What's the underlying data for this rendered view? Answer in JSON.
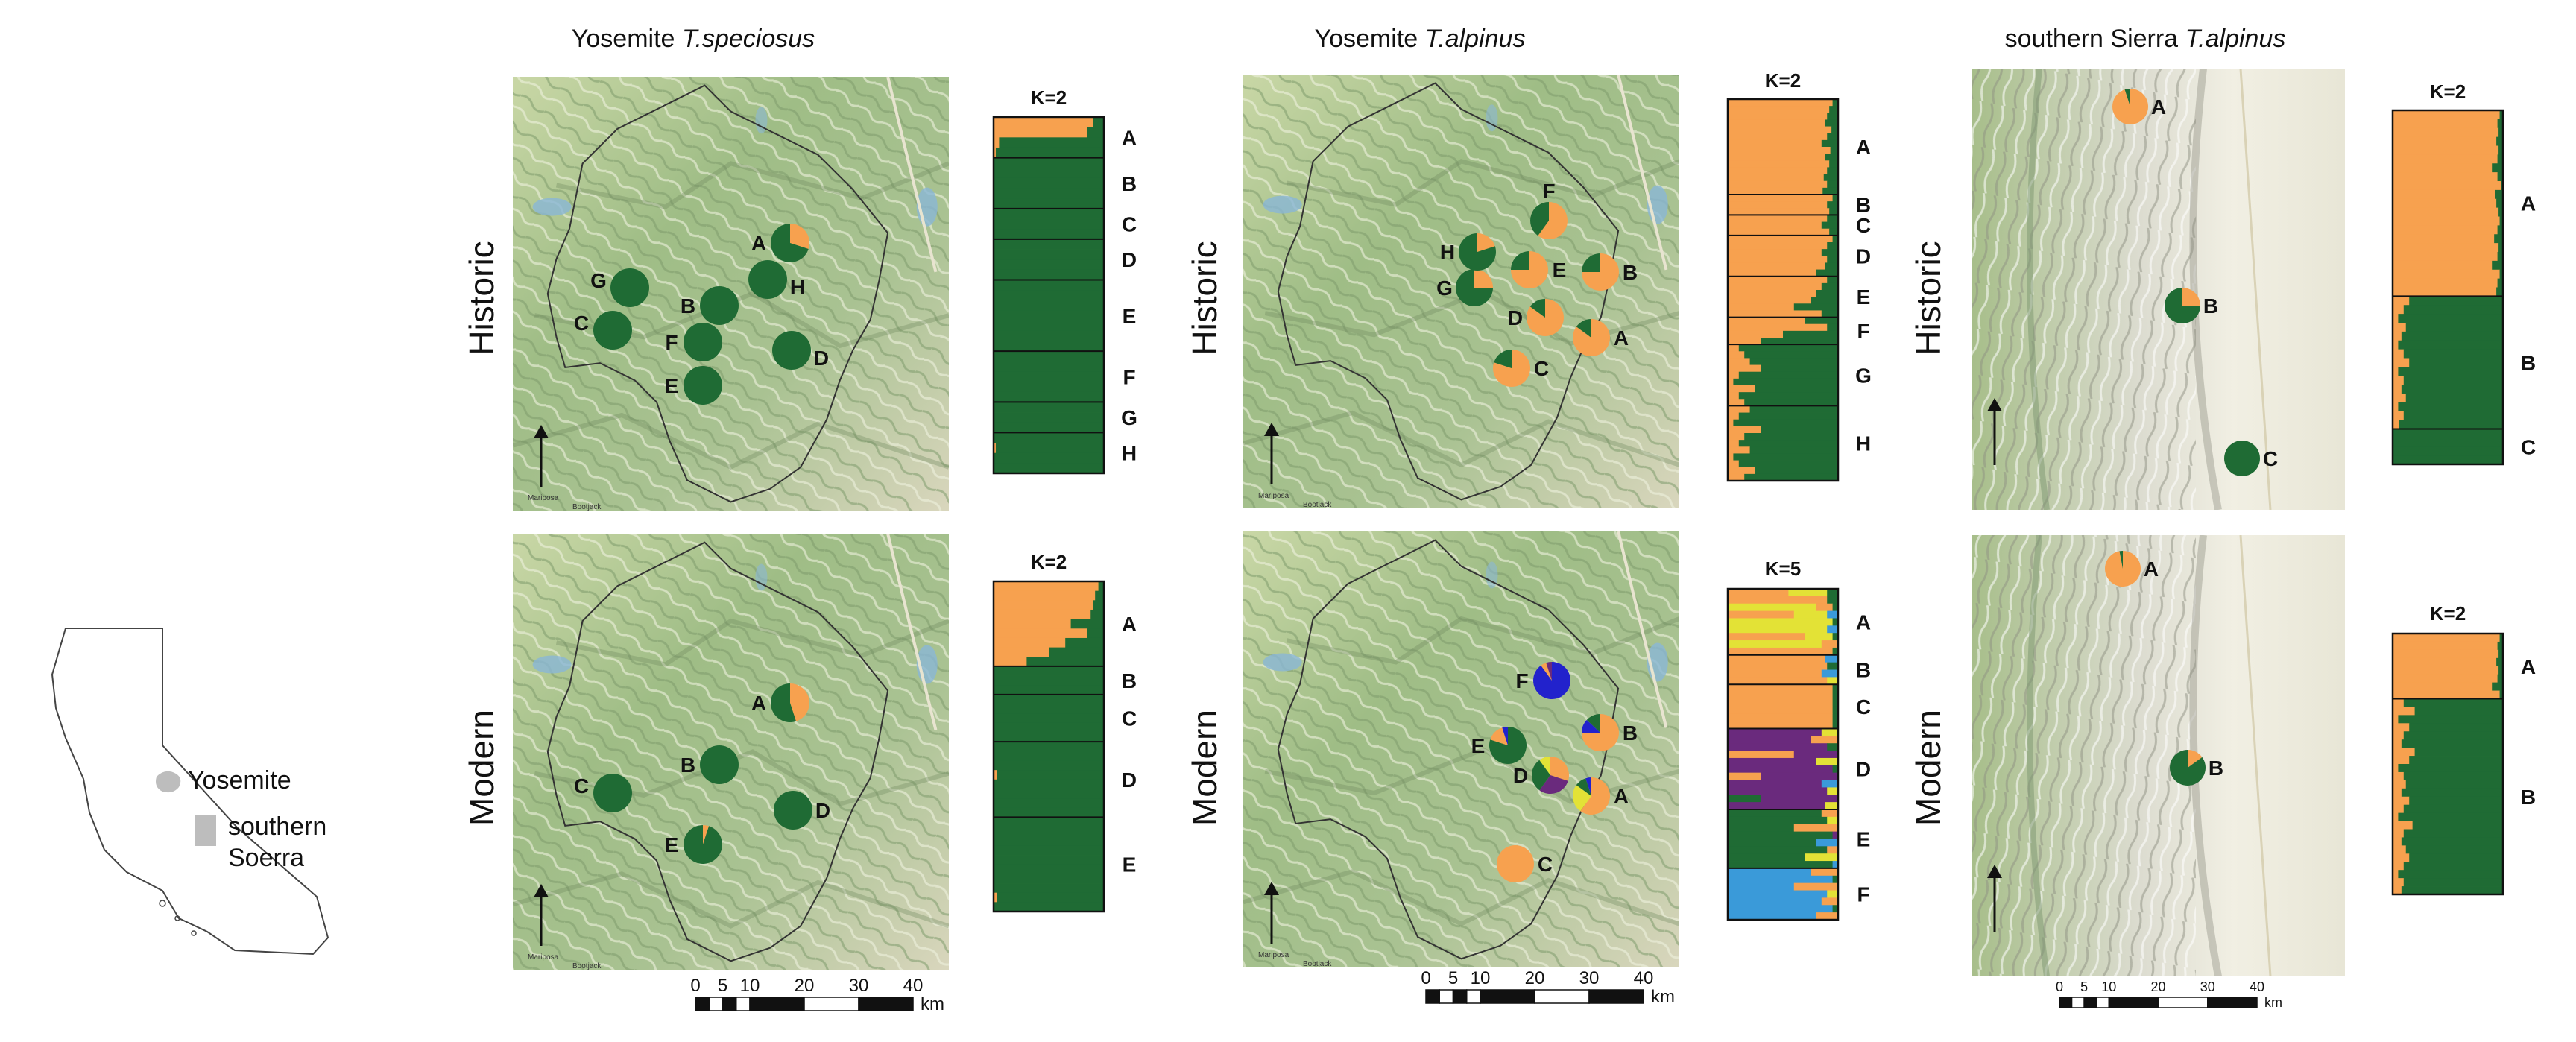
{
  "colors": {
    "orange": "#f7a14f",
    "green": "#1f6b34",
    "yellow": "#e3e236",
    "purple": "#6a2a7d",
    "blue": "#3a9ad9",
    "deep_blue": "#2222cc",
    "park_border": "#333333",
    "lake": "#8ab7d6"
  },
  "california": {
    "labels": [
      "Yosemite",
      "southern",
      "Soerra"
    ]
  },
  "columns": [
    {
      "title_prefix": "Yosemite ",
      "title_species": "T.speciosus",
      "scale": {
        "ticks": [
          "0",
          "5",
          "10",
          "20",
          "30",
          "40"
        ],
        "unit": "km"
      }
    },
    {
      "title_prefix": "Yosemite ",
      "title_species": "T.alpinus",
      "scale": {
        "ticks": [
          "0",
          "5",
          "10",
          "20",
          "30",
          "40"
        ],
        "unit": "km"
      }
    },
    {
      "title_prefix": "southern Sierra ",
      "title_species": "T.alpinus",
      "scale": {
        "ticks": [
          "0",
          "5",
          "10",
          "20",
          "30",
          "40"
        ],
        "unit": "km"
      }
    }
  ],
  "rows": [
    "Historic",
    "Modern"
  ],
  "panels": [
    {
      "col": 0,
      "row": 0,
      "map_type": "yosemite",
      "map_text": [
        "Mariposa",
        "Bootjack"
      ],
      "pies": [
        {
          "label": "A",
          "orange": 0.3
        },
        {
          "label": "B",
          "orange": 0
        },
        {
          "label": "C",
          "orange": 0
        },
        {
          "label": "D",
          "orange": 0
        },
        {
          "label": "E",
          "orange": 0
        },
        {
          "label": "F",
          "orange": 0
        },
        {
          "label": "G",
          "orange": 0
        },
        {
          "label": "H",
          "orange": 0
        }
      ],
      "structure": {
        "k_label": "K=2",
        "groups": [
          {
            "label": "A",
            "orange": [
              0.9,
              0.85,
              0.05,
              0.02
            ]
          },
          {
            "label": "B",
            "orange": [
              0,
              0,
              0,
              0,
              0
            ]
          },
          {
            "label": "C",
            "orange": [
              0,
              0,
              0
            ]
          },
          {
            "label": "D",
            "orange": [
              0,
              0,
              0,
              0
            ]
          },
          {
            "label": "E",
            "orange": [
              0,
              0,
              0,
              0,
              0,
              0,
              0
            ]
          },
          {
            "label": "F",
            "orange": [
              0,
              0,
              0,
              0,
              0
            ]
          },
          {
            "label": "G",
            "orange": [
              0,
              0,
              0
            ]
          },
          {
            "label": "H",
            "orange": [
              0,
              0.02,
              0,
              0
            ]
          }
        ]
      }
    },
    {
      "col": 0,
      "row": 1,
      "map_type": "yosemite",
      "map_text": [
        "Mariposa",
        "Bootjack"
      ],
      "pies": [
        {
          "label": "A",
          "orange": 0.45
        },
        {
          "label": "B",
          "orange": 0
        },
        {
          "label": "C",
          "orange": 0
        },
        {
          "label": "D",
          "orange": 0
        },
        {
          "label": "E",
          "orange": 0.05
        }
      ],
      "structure": {
        "k_label": "K=2",
        "groups": [
          {
            "label": "A",
            "orange": [
              0.95,
              0.92,
              0.9,
              0.88,
              0.7,
              0.85,
              0.65,
              0.5,
              0.3
            ]
          },
          {
            "label": "B",
            "orange": [
              0,
              0,
              0
            ]
          },
          {
            "label": "C",
            "orange": [
              0,
              0,
              0,
              0,
              0
            ]
          },
          {
            "label": "D",
            "orange": [
              0,
              0,
              0,
              0.03,
              0,
              0,
              0,
              0
            ]
          },
          {
            "label": "E",
            "orange": [
              0,
              0,
              0,
              0,
              0,
              0,
              0,
              0,
              0.03,
              0
            ]
          }
        ]
      }
    },
    {
      "col": 1,
      "row": 0,
      "map_type": "yosemite",
      "map_text": [
        "Mariposa",
        "Bootjack"
      ],
      "pies": [
        {
          "label": "A",
          "orange": 0.85
        },
        {
          "label": "B",
          "orange": 0.75
        },
        {
          "label": "C",
          "orange": 0.8
        },
        {
          "label": "D",
          "orange": 0.85
        },
        {
          "label": "E",
          "orange": 0.75
        },
        {
          "label": "F",
          "orange": 0.6
        },
        {
          "label": "G",
          "orange": 0.25
        },
        {
          "label": "H",
          "orange": 0.2
        }
      ],
      "structure": {
        "k_label": "K=2",
        "groups": [
          {
            "label": "A",
            "orange": [
              0.95,
              0.92,
              0.9,
              0.88,
              0.94,
              0.9,
              0.85,
              0.93,
              0.88,
              0.92,
              0.9,
              0.87,
              0.9,
              0.86
            ]
          },
          {
            "label": "B",
            "orange": [
              0.95,
              0.9,
              0.92
            ]
          },
          {
            "label": "C",
            "orange": [
              0.9,
              0.85,
              0.92
            ]
          },
          {
            "label": "D",
            "orange": [
              0.95,
              0.9,
              0.85,
              0.9,
              0.88,
              0.8
            ]
          },
          {
            "label": "E",
            "orange": [
              0.9,
              0.85,
              0.8,
              0.75,
              0.6,
              0.85
            ]
          },
          {
            "label": "F",
            "orange": [
              0.7,
              0.9,
              0.5,
              0.3
            ]
          },
          {
            "label": "G",
            "orange": [
              0.1,
              0.15,
              0.2,
              0.3,
              0.1,
              0.05,
              0.25,
              0.1,
              0.15
            ]
          },
          {
            "label": "H",
            "orange": [
              0.2,
              0.1,
              0.05,
              0.3,
              0.15,
              0.1,
              0.2,
              0.05,
              0.1,
              0.25,
              0.15
            ]
          }
        ]
      }
    },
    {
      "col": 1,
      "row": 1,
      "map_type": "yosemite",
      "map_text": [
        "Mariposa",
        "Bootjack"
      ],
      "pies": [
        {
          "label": "A",
          "parts": {
            "orange": 0.6,
            "yellow": 0.25,
            "green": 0.1,
            "deep_blue": 0.05
          }
        },
        {
          "label": "B",
          "parts": {
            "orange": 0.75,
            "deep_blue": 0.12,
            "green": 0.13
          }
        },
        {
          "label": "C",
          "parts": {
            "orange": 1.0
          }
        },
        {
          "label": "D",
          "parts": {
            "orange": 0.3,
            "purple": 0.3,
            "green": 0.3,
            "yellow": 0.1
          }
        },
        {
          "label": "E",
          "parts": {
            "green": 0.8,
            "orange": 0.15,
            "deep_blue": 0.05
          }
        },
        {
          "label": "F",
          "parts": {
            "deep_blue": 0.9,
            "orange": 0.05,
            "purple": 0.05
          }
        }
      ],
      "structure": {
        "k_label": "K=5",
        "groups": [
          {
            "label": "A",
            "n": 9,
            "pattern": "ay"
          },
          {
            "label": "B",
            "n": 4,
            "pattern": "ob"
          },
          {
            "label": "C",
            "n": 6,
            "pattern": "o"
          },
          {
            "label": "D",
            "n": 11,
            "pattern": "p"
          },
          {
            "label": "E",
            "n": 8,
            "pattern": "g"
          },
          {
            "label": "F",
            "n": 7,
            "pattern": "bl"
          }
        ]
      }
    },
    {
      "col": 2,
      "row": 0,
      "map_type": "sierra",
      "map_text": [],
      "pies": [
        {
          "label": "A",
          "orange": 0.95
        },
        {
          "label": "B",
          "orange": 0.25
        },
        {
          "label": "C",
          "orange": 0
        }
      ],
      "structure": {
        "k_label": "K=2",
        "groups": [
          {
            "label": "A",
            "orange": [
              0.97,
              0.95,
              0.96,
              0.94,
              0.96,
              0.95,
              0.9,
              0.95,
              0.98,
              0.93,
              0.94,
              0.96,
              0.97,
              0.95,
              0.92,
              0.96,
              0.95,
              0.9,
              0.97,
              0.95,
              0.94
            ]
          },
          {
            "label": "B",
            "orange": [
              0.15,
              0.1,
              0.05,
              0.12,
              0.08,
              0.05,
              0.1,
              0.15,
              0.05,
              0.1,
              0.08,
              0.12,
              0.05,
              0.1,
              0.06
            ]
          },
          {
            "label": "C",
            "orange": [
              0,
              0,
              0,
              0
            ]
          }
        ]
      }
    },
    {
      "col": 2,
      "row": 1,
      "map_type": "sierra",
      "map_text": [],
      "pies": [
        {
          "label": "A",
          "orange": 0.97
        },
        {
          "label": "B",
          "orange": 0.15
        }
      ],
      "structure": {
        "k_label": "K=2",
        "groups": [
          {
            "label": "A",
            "orange": [
              0.97,
              0.95,
              0.96,
              0.94,
              0.96,
              0.95,
              0.9,
              0.97
            ]
          },
          {
            "label": "B",
            "orange": [
              0.1,
              0.2,
              0.05,
              0.15,
              0.1,
              0.08,
              0.2,
              0.15,
              0.05,
              0.1,
              0.12,
              0.08,
              0.15,
              0.1,
              0.05,
              0.18,
              0.1,
              0.08,
              0.12,
              0.15,
              0.1,
              0.05,
              0.1,
              0.08
            ]
          }
        ]
      }
    }
  ]
}
